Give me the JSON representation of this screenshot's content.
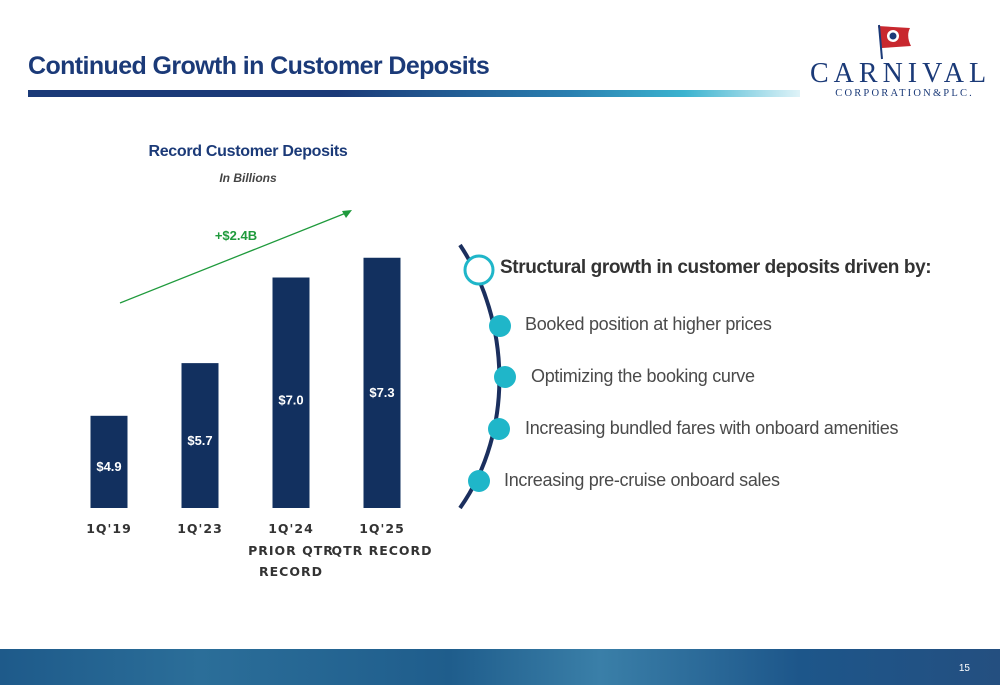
{
  "slide": {
    "title": "Continued Growth in Customer Deposits",
    "page_number": "15",
    "logo": {
      "name": "CARNIVAL",
      "sub": "CORPORATION&PLC."
    }
  },
  "chart_data": {
    "type": "bar",
    "title": "Record Customer Deposits",
    "subtitle": "In Billions",
    "categories": [
      {
        "label": "1Q'19",
        "sublabel": ""
      },
      {
        "label": "1Q'23",
        "sublabel": ""
      },
      {
        "label": "1Q'24",
        "sublabel": "PRIOR QTR RECORD"
      },
      {
        "label": "1Q'25",
        "sublabel": "QTR RECORD"
      }
    ],
    "values": [
      4.9,
      5.7,
      7.0,
      7.3
    ],
    "value_labels": [
      "$4.9",
      "$5.7",
      "$7.0",
      "$7.3"
    ],
    "annotation": "+$2.4B",
    "ylim": [
      3.5,
      7.6
    ],
    "grid": false,
    "bar_color": "#12305f",
    "annotation_color": "#1f9a3c"
  },
  "highlights": {
    "headline": "Structural growth in customer deposits driven by:",
    "items": [
      "Booked position at higher prices",
      "Optimizing the booking curve",
      "Increasing bundled fares with onboard amenities",
      "Increasing pre-cruise onboard sales"
    ],
    "accent_color": "#1fb6c9",
    "arc_color": "#1b2f5e"
  }
}
